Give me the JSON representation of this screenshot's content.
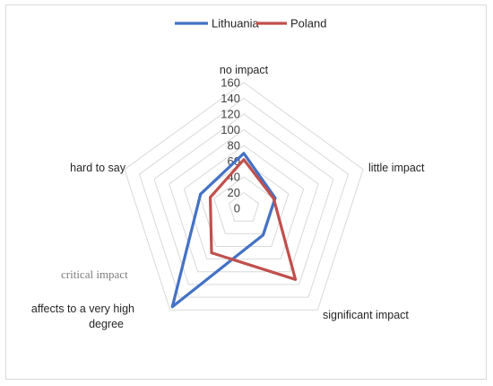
{
  "chart_data": {
    "type": "radar",
    "title": "",
    "categories": [
      "no impact",
      "little impact",
      "significant impact",
      "affects to a very high degree",
      "hard to say"
    ],
    "series": [
      {
        "name": "Lithuania",
        "values": [
          70,
          42,
          42,
          155,
          58
        ],
        "color": "#4472c4"
      },
      {
        "name": "Poland",
        "values": [
          62,
          40,
          112,
          70,
          45
        ],
        "color": "#c0504d"
      }
    ],
    "r_min": 0,
    "r_max": 160,
    "r_ticks": [
      0,
      20,
      40,
      60,
      80,
      100,
      120,
      140,
      160
    ],
    "grid": true,
    "legend_position": "top",
    "annotation": "critical impact"
  }
}
